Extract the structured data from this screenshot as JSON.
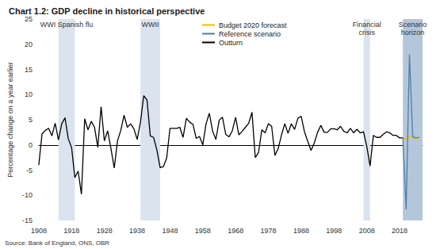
{
  "chart_data": {
    "type": "line",
    "title": "Chart 1.2: GDP decline in historical perspective",
    "source": "Source: Bank of England, ONS, OBR",
    "y_label": "Percentage change on a year earlier",
    "x": [
      1908,
      1909,
      1910,
      1911,
      1912,
      1913,
      1914,
      1915,
      1916,
      1917,
      1918,
      1919,
      1920,
      1921,
      1922,
      1923,
      1924,
      1925,
      1926,
      1927,
      1928,
      1929,
      1930,
      1931,
      1932,
      1933,
      1934,
      1935,
      1936,
      1937,
      1938,
      1939,
      1940,
      1941,
      1942,
      1943,
      1944,
      1945,
      1946,
      1947,
      1948,
      1949,
      1950,
      1951,
      1952,
      1953,
      1954,
      1955,
      1956,
      1957,
      1958,
      1959,
      1960,
      1961,
      1962,
      1963,
      1964,
      1965,
      1966,
      1967,
      1968,
      1969,
      1970,
      1971,
      1972,
      1973,
      1974,
      1975,
      1976,
      1977,
      1978,
      1979,
      1980,
      1981,
      1982,
      1983,
      1984,
      1985,
      1986,
      1987,
      1988,
      1989,
      1990,
      1991,
      1992,
      1993,
      1994,
      1995,
      1996,
      1997,
      1998,
      1999,
      2000,
      2001,
      2002,
      2003,
      2004,
      2005,
      2006,
      2007,
      2008,
      2009,
      2010,
      2011,
      2012,
      2013,
      2014,
      2015,
      2016,
      2017,
      2018,
      2019,
      2020,
      2021,
      2022,
      2023,
      2024
    ],
    "series": [
      {
        "name": "Budget 2020 forecast",
        "color": "#f2bd00",
        "values": [
          null,
          null,
          null,
          null,
          null,
          null,
          null,
          null,
          null,
          null,
          null,
          null,
          null,
          null,
          null,
          null,
          null,
          null,
          null,
          null,
          null,
          null,
          null,
          null,
          null,
          null,
          null,
          null,
          null,
          null,
          null,
          null,
          null,
          null,
          null,
          null,
          null,
          null,
          null,
          null,
          null,
          null,
          null,
          null,
          null,
          null,
          null,
          null,
          null,
          null,
          null,
          null,
          null,
          null,
          null,
          null,
          null,
          null,
          null,
          null,
          null,
          null,
          null,
          null,
          null,
          null,
          null,
          null,
          null,
          null,
          null,
          null,
          null,
          null,
          null,
          null,
          null,
          null,
          null,
          null,
          null,
          null,
          null,
          null,
          null,
          null,
          null,
          null,
          null,
          null,
          null,
          null,
          null,
          null,
          null,
          null,
          null,
          null,
          null,
          null,
          null,
          null,
          null,
          null,
          null,
          null,
          null,
          null,
          null,
          null,
          null,
          1.4,
          1.1,
          1.8,
          1.5,
          1.3,
          1.4
        ]
      },
      {
        "name": "Reference scenario",
        "color": "#4a7fa8",
        "values": [
          null,
          null,
          null,
          null,
          null,
          null,
          null,
          null,
          null,
          null,
          null,
          null,
          null,
          null,
          null,
          null,
          null,
          null,
          null,
          null,
          null,
          null,
          null,
          null,
          null,
          null,
          null,
          null,
          null,
          null,
          null,
          null,
          null,
          null,
          null,
          null,
          null,
          null,
          null,
          null,
          null,
          null,
          null,
          null,
          null,
          null,
          null,
          null,
          null,
          null,
          null,
          null,
          null,
          null,
          null,
          null,
          null,
          null,
          null,
          null,
          null,
          null,
          null,
          null,
          null,
          null,
          null,
          null,
          null,
          null,
          null,
          null,
          null,
          null,
          null,
          null,
          null,
          null,
          null,
          null,
          null,
          null,
          null,
          null,
          null,
          null,
          null,
          null,
          null,
          null,
          null,
          null,
          null,
          null,
          null,
          null,
          null,
          null,
          null,
          null,
          null,
          null,
          null,
          null,
          null,
          null,
          null,
          null,
          null,
          null,
          null,
          1.4,
          -12.8,
          18.0,
          1.6,
          1.4,
          1.5
        ]
      },
      {
        "name": "Outturn",
        "color": "#000000",
        "values": [
          -4.0,
          2.2,
          2.9,
          3.3,
          1.8,
          4.3,
          1.0,
          4.2,
          5.4,
          1.2,
          -0.5,
          -6.5,
          -5.2,
          -9.8,
          5.2,
          3.0,
          4.7,
          3.5,
          -0.5,
          7.6,
          0.8,
          2.8,
          -0.7,
          -4.6,
          0.8,
          2.9,
          5.9,
          3.5,
          4.2,
          3.2,
          1.1,
          4.5,
          9.8,
          8.9,
          1.8,
          1.5,
          -1.0,
          -4.5,
          -4.3,
          -2.6,
          3.3,
          3.3,
          3.3,
          3.5,
          1.5,
          5.3,
          4.5,
          4.1,
          1.3,
          1.7,
          0.0,
          4.2,
          6.3,
          2.7,
          1.1,
          4.9,
          5.5,
          2.1,
          1.6,
          2.8,
          5.5,
          2.0,
          2.7,
          3.5,
          4.3,
          6.5,
          -2.5,
          -1.5,
          3.0,
          2.4,
          4.2,
          3.7,
          -2.1,
          -0.7,
          2.0,
          4.2,
          2.3,
          4.2,
          3.1,
          5.3,
          5.7,
          2.6,
          0.7,
          -1.1,
          0.4,
          2.5,
          3.9,
          2.5,
          2.5,
          3.2,
          3.2,
          3.0,
          3.7,
          2.7,
          2.4,
          3.3,
          2.4,
          3.1,
          2.4,
          2.6,
          -0.3,
          -4.2,
          1.9,
          1.5,
          1.5,
          2.1,
          2.6,
          2.4,
          1.9,
          1.9,
          1.4,
          1.4,
          null,
          null,
          null,
          null,
          null
        ]
      }
    ],
    "bands": [
      {
        "label": "WWI Spanish flu",
        "start": 1914,
        "end": 1919,
        "color": "#dbe4ee"
      },
      {
        "label": "WWII",
        "start": 1939,
        "end": 1945,
        "color": "#dbe4ee"
      },
      {
        "label": "Financial\ncrisis",
        "start": 2007,
        "end": 2009,
        "color": "#dbe4ee"
      },
      {
        "label": "Scenario\nhorizon",
        "start": 2019,
        "end": 2025,
        "color": "#b4c6d9"
      }
    ],
    "xlim": [
      1908,
      2025
    ],
    "xticks": [
      1908,
      1918,
      1928,
      1938,
      1948,
      1958,
      1968,
      1978,
      1988,
      1998,
      2008,
      2018
    ],
    "ylim": [
      -15,
      25
    ],
    "yticks": [
      -15,
      -10,
      -5,
      0,
      5,
      10,
      15,
      20,
      25
    ],
    "grid": false,
    "legend": "top"
  }
}
